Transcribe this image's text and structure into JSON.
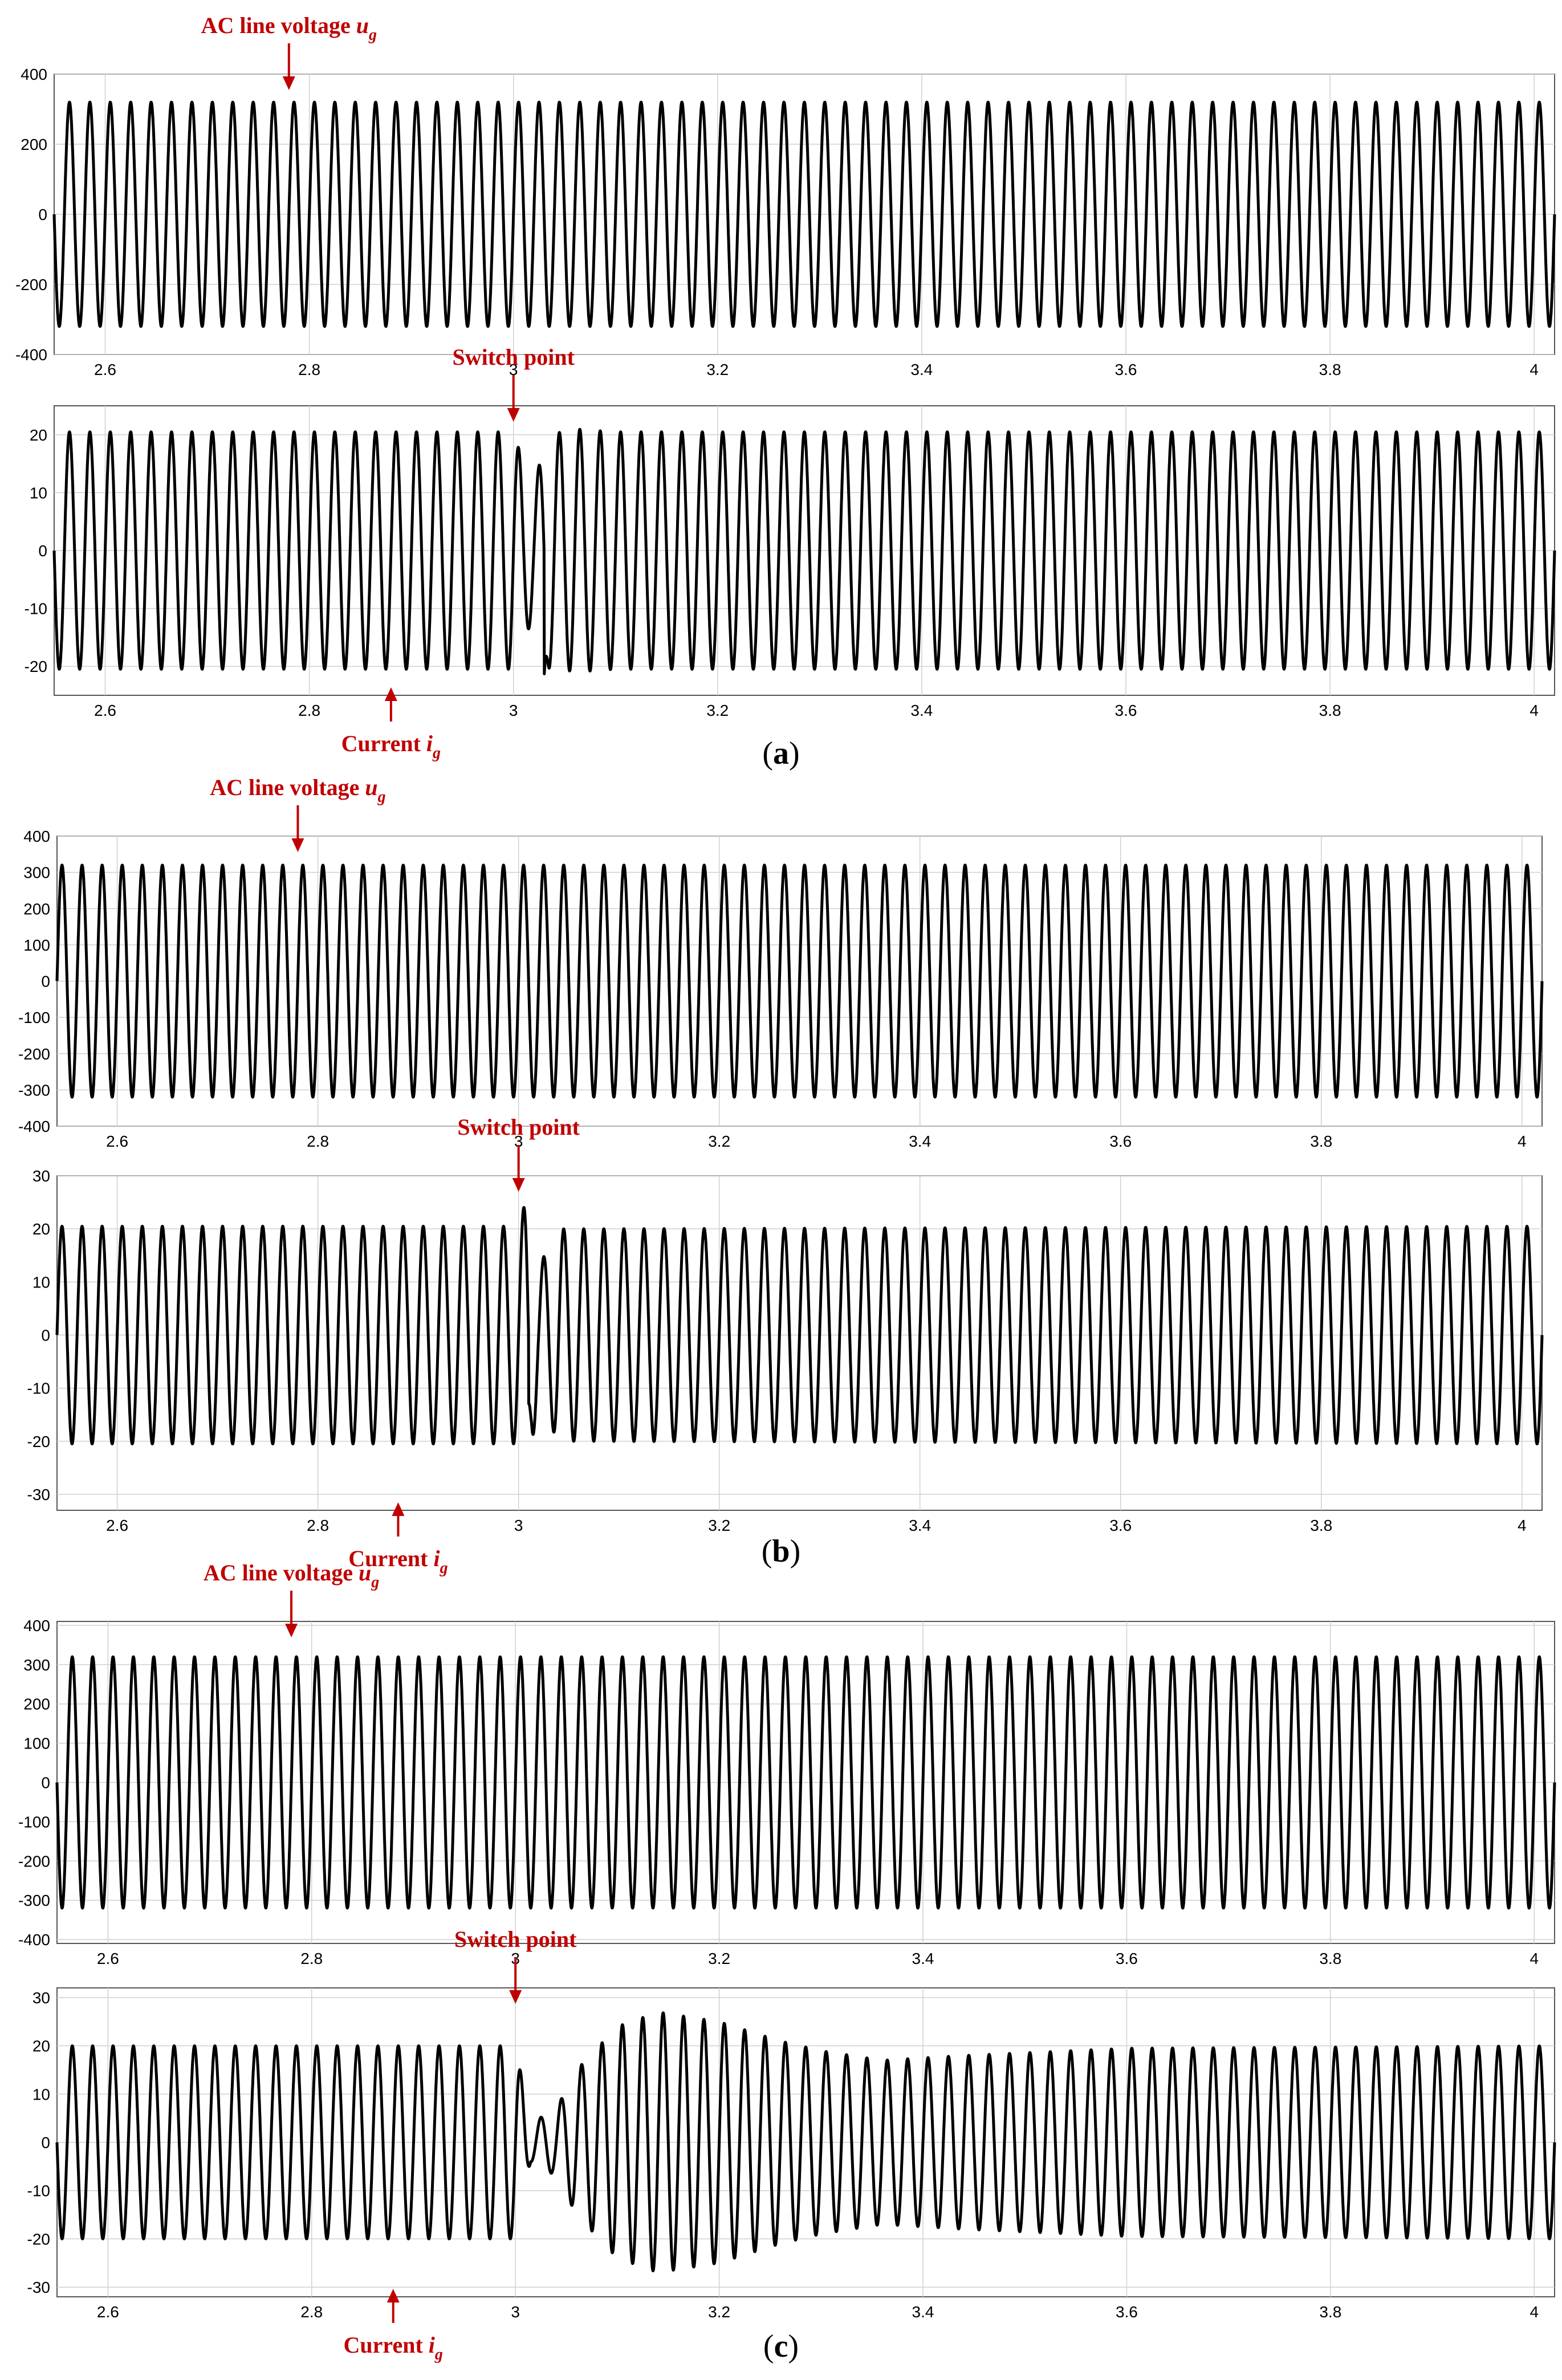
{
  "chart_data": [
    {
      "type": "line",
      "panel": "a",
      "role": "voltage",
      "annotation": {
        "text": "AC line voltage ",
        "sub": "g",
        "var": "u",
        "at_x": 2.78
      },
      "xlim": [
        2.55,
        4.02
      ],
      "ylim": [
        -400,
        400
      ],
      "xticks": [
        2.6,
        2.8,
        3,
        3.2,
        3.4,
        3.6,
        3.8,
        4
      ],
      "yticks": [
        -400,
        -200,
        0,
        200,
        400
      ],
      "series": [
        {
          "amplitude": 320,
          "frequency_hz": 50,
          "envelope": [
            [
              2.55,
              320
            ],
            [
              4.02,
              320
            ]
          ]
        }
      ]
    },
    {
      "type": "line",
      "panel": "a",
      "role": "current",
      "annotations": [
        {
          "text": "Switch point",
          "at_x": 3.0
        },
        {
          "text": "Current ",
          "sub": "g",
          "var": "i",
          "at_x": 2.88
        }
      ],
      "xlim": [
        2.55,
        4.02
      ],
      "ylim": [
        -25,
        25
      ],
      "xticks": [
        2.6,
        2.8,
        3,
        3.2,
        3.4,
        3.6,
        3.8,
        4
      ],
      "yticks": [
        -20,
        -10,
        0,
        10,
        20
      ],
      "series": [
        {
          "amplitude": 20.5,
          "frequency_hz": 50,
          "envelope": [
            [
              2.55,
              20.5
            ],
            [
              3.0,
              20.5
            ],
            [
              3.01,
              15
            ],
            [
              3.02,
              12
            ],
            [
              3.035,
              20
            ],
            [
              3.06,
              21
            ],
            [
              3.1,
              20.5
            ],
            [
              4.02,
              20.5
            ]
          ],
          "negative_peak": {
            "x": 3.03,
            "y": -22
          }
        }
      ]
    },
    {
      "type": "line",
      "panel": "b",
      "role": "voltage",
      "annotation": {
        "text": "AC line voltage ",
        "sub": "g",
        "var": "u",
        "at_x": 2.78
      },
      "xlim": [
        2.54,
        4.02
      ],
      "ylim": [
        -400,
        400
      ],
      "xticks": [
        2.6,
        2.8,
        3,
        3.2,
        3.4,
        3.6,
        3.8,
        4
      ],
      "yticks": [
        -400,
        -300,
        -200,
        -100,
        0,
        100,
        200,
        300,
        400
      ],
      "series": [
        {
          "amplitude": 320,
          "frequency_hz": 50,
          "envelope": [
            [
              2.54,
              320
            ],
            [
              4.02,
              320
            ]
          ]
        }
      ]
    },
    {
      "type": "line",
      "panel": "b",
      "role": "current",
      "annotations": [
        {
          "text": "Switch point",
          "at_x": 3.0
        },
        {
          "text": "Current ",
          "sub": "g",
          "var": "i",
          "at_x": 2.88
        }
      ],
      "xlim": [
        2.54,
        4.02
      ],
      "ylim": [
        -33,
        30
      ],
      "xticks": [
        2.6,
        2.8,
        3,
        3.2,
        3.4,
        3.6,
        3.8,
        4
      ],
      "yticks": [
        -30,
        -20,
        -10,
        0,
        10,
        20,
        30
      ],
      "series": [
        {
          "amplitude": 20.5,
          "frequency_hz": 50,
          "envelope": [
            [
              2.54,
              20.5
            ],
            [
              3.0,
              20.5
            ],
            [
              3.008,
              26
            ],
            [
              3.02,
              13
            ],
            [
              3.04,
              20
            ],
            [
              4.02,
              20.5
            ]
          ],
          "negative_peak": {
            "x": 3.007,
            "y": -26
          }
        }
      ]
    },
    {
      "type": "line",
      "panel": "c",
      "role": "voltage",
      "annotation": {
        "text": "AC line voltage ",
        "sub": "g",
        "var": "u",
        "at_x": 2.78
      },
      "xlim": [
        2.55,
        4.02
      ],
      "ylim": [
        -410,
        410
      ],
      "xticks": [
        2.6,
        2.8,
        3,
        3.2,
        3.4,
        3.6,
        3.8,
        4
      ],
      "yticks": [
        -400,
        -300,
        -200,
        -100,
        0,
        100,
        200,
        300,
        400
      ],
      "series": [
        {
          "amplitude": 320,
          "frequency_hz": 50,
          "envelope": [
            [
              2.55,
              320
            ],
            [
              4.02,
              320
            ]
          ]
        }
      ]
    },
    {
      "type": "line",
      "panel": "c",
      "role": "current",
      "annotations": [
        {
          "text": "Switch point",
          "at_x": 3.0
        },
        {
          "text": "Current ",
          "sub": "g",
          "var": "i",
          "at_x": 2.88
        }
      ],
      "xlim": [
        2.55,
        4.02
      ],
      "ylim": [
        -32,
        32
      ],
      "xticks": [
        2.6,
        2.8,
        3,
        3.2,
        3.4,
        3.6,
        3.8,
        4
      ],
      "yticks": [
        -30,
        -20,
        -10,
        0,
        10,
        20,
        30
      ],
      "series": [
        {
          "amplitude": 20,
          "frequency_hz": 50,
          "envelope": [
            [
              2.55,
              20
            ],
            [
              3.0,
              20
            ],
            [
              3.015,
              4
            ],
            [
              3.04,
              7
            ],
            [
              3.06,
              15
            ],
            [
              3.1,
              24
            ],
            [
              3.14,
              27
            ],
            [
              3.2,
              25
            ],
            [
              3.26,
              21
            ],
            [
              3.3,
              19
            ],
            [
              3.36,
              17
            ],
            [
              3.44,
              18
            ],
            [
              3.6,
              19.5
            ],
            [
              4.02,
              20
            ]
          ]
        }
      ]
    }
  ],
  "captions": [
    {
      "open": "(",
      "letter": "a",
      "close": ")"
    },
    {
      "open": "(",
      "letter": "b",
      "close": ")"
    },
    {
      "open": "(",
      "letter": "c",
      "close": ")"
    }
  ],
  "colors": {
    "annotation": "#c00000",
    "trace": "#000000",
    "grid": "#d0d0d0",
    "axis": "#555555"
  }
}
